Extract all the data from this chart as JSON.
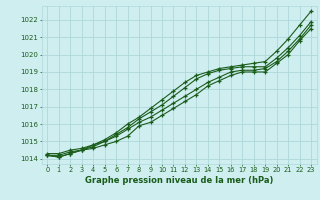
{
  "x": [
    0,
    1,
    2,
    3,
    4,
    5,
    6,
    7,
    8,
    9,
    10,
    11,
    12,
    13,
    14,
    15,
    16,
    17,
    18,
    19,
    20,
    21,
    22,
    23
  ],
  "line1": [
    1014.2,
    1014.2,
    1014.4,
    1014.5,
    1014.6,
    1014.8,
    1015.0,
    1015.3,
    1015.9,
    1016.1,
    1016.5,
    1016.9,
    1017.3,
    1017.7,
    1018.2,
    1018.5,
    1018.8,
    1019.0,
    1019.0,
    1019.0,
    1019.5,
    1020.0,
    1020.8,
    1021.5
  ],
  "line2": [
    1014.3,
    1014.3,
    1014.5,
    1014.6,
    1014.8,
    1015.0,
    1015.3,
    1015.7,
    1016.1,
    1016.4,
    1016.8,
    1017.2,
    1017.6,
    1018.0,
    1018.4,
    1018.7,
    1019.0,
    1019.1,
    1019.1,
    1019.2,
    1019.6,
    1020.2,
    1020.9,
    1021.7
  ],
  "line3": [
    1014.2,
    1014.1,
    1014.3,
    1014.5,
    1014.7,
    1015.0,
    1015.4,
    1015.8,
    1016.3,
    1016.7,
    1017.1,
    1017.6,
    1018.1,
    1018.6,
    1018.9,
    1019.1,
    1019.2,
    1019.3,
    1019.3,
    1019.3,
    1019.8,
    1020.4,
    1021.1,
    1021.9
  ],
  "line4": [
    1014.2,
    1014.1,
    1014.3,
    1014.5,
    1014.8,
    1015.1,
    1015.5,
    1016.0,
    1016.4,
    1016.9,
    1017.4,
    1017.9,
    1018.4,
    1018.8,
    1019.0,
    1019.2,
    1019.3,
    1019.4,
    1019.5,
    1019.6,
    1020.2,
    1020.9,
    1021.7,
    1022.5
  ],
  "bg_color": "#ceeef0",
  "grid_color": "#aed8da",
  "line_color": "#1a5c1a",
  "title": "Graphe pression niveau de la mer (hPa)",
  "ylabel_vals": [
    1014,
    1015,
    1016,
    1017,
    1018,
    1019,
    1020,
    1021,
    1022
  ],
  "ylim": [
    1013.7,
    1022.8
  ],
  "xlim": [
    -0.5,
    23.5
  ]
}
